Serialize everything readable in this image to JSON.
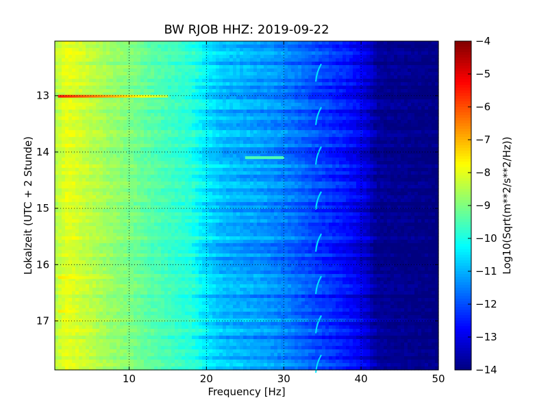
{
  "chart_data": {
    "type": "heatmap",
    "title": "BW RJOB HHZ: 2019-09-22",
    "xlabel": "Frequency [Hz]",
    "ylabel": "Lokalzeit (UTC + 2 Stunde)",
    "xlim": [
      0.39,
      50
    ],
    "ylim": [
      12.03,
      17.87
    ],
    "y_inverted": true,
    "xticks": [
      10,
      20,
      30,
      40,
      50
    ],
    "yticks": [
      13,
      14,
      15,
      16,
      17
    ],
    "grid": true,
    "colormap": "jet",
    "colorbar": {
      "label": "Log10(Sqrt(m**2/s**2/Hz))",
      "range": [
        -14,
        -4
      ],
      "ticks": [
        -4,
        -5,
        -6,
        -7,
        -8,
        -9,
        -10,
        -11,
        -12,
        -13,
        -14
      ]
    },
    "spectrum_profile": {
      "frequency_hz": [
        0.4,
        2,
        5,
        8,
        10,
        12,
        15,
        18,
        20,
        22,
        25,
        28,
        30,
        33,
        35,
        38,
        40,
        41,
        42,
        50
      ],
      "level": [
        -8.5,
        -8.0,
        -8.4,
        -8.8,
        -9.0,
        -9.3,
        -9.6,
        -9.9,
        -10.5,
        -10.9,
        -11.1,
        -11.3,
        -11.5,
        -11.9,
        -12.2,
        -12.6,
        -13.0,
        -13.3,
        -13.8,
        -14.0
      ]
    },
    "features": [
      {
        "kind": "horizontal_band",
        "time": 13.01,
        "f_start": 0.8,
        "f_end": 15,
        "level_at_start": -5.5,
        "level_at_end": -8.5
      },
      {
        "kind": "horizontal_band",
        "time": 16.23,
        "f_start": 0.8,
        "f_end": 8,
        "level_at_start": -7.5,
        "level_at_end": -8.5
      },
      {
        "kind": "horizontal_band",
        "time": 16.83,
        "f_start": 0.8,
        "f_end": 3.5,
        "level_at_start": -7.5,
        "level_at_end": -8.0
      },
      {
        "kind": "horizontal_band",
        "time": 14.1,
        "f_start": 25,
        "f_end": 30,
        "level_at_start": -9.5,
        "level_at_end": -9.5
      }
    ],
    "recurring_feature": {
      "kind": "narrow_arc",
      "frequency_hz": 34.5,
      "times": [
        12.58,
        13.35,
        14.05,
        14.85,
        15.6,
        16.35,
        17.05,
        17.75
      ],
      "level": -10.5
    }
  }
}
